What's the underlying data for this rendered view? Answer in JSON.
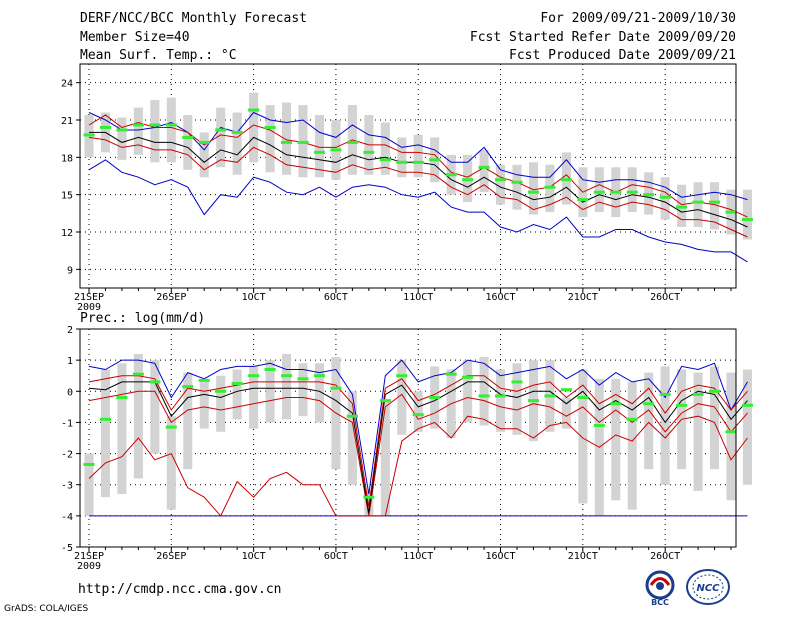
{
  "header": {
    "title": "DERF/NCC/BCC Monthly Forecast",
    "member_size": "Member Size=40",
    "variable_top": "Mean Surf. Temp.: °C",
    "period": "For 2009/09/21-2009/10/30",
    "fcst_started": "Fcst Started Refer Date 2009/09/20",
    "fcst_produced": "Fcst Produced Date 2009/09/21"
  },
  "footer": {
    "url": "http://cmdp.ncc.cma.gov.cn",
    "grads": "GrADS: COLA/IGES",
    "logo_bcc": "BCC",
    "logo_ncc": "NCC"
  },
  "colors": {
    "ensemble_mean": "#000000",
    "member_spread": "#cc0000",
    "extreme_envelope": "#0000cc",
    "box": "#d3d3d3",
    "median": "#33ee33",
    "grid": "#000000"
  },
  "chart_data": [
    {
      "type": "line",
      "title": "Mean Surf. Temp.: °C",
      "xlabel": "",
      "ylabel": "",
      "x_tick_labels": [
        "21SEP",
        "26SEP",
        "1OCT",
        "6OCT",
        "11OCT",
        "16OCT",
        "21OCT",
        "26OCT"
      ],
      "year_label": "2009",
      "x_tick_days": [
        1,
        6,
        11,
        16,
        21,
        26,
        31,
        36
      ],
      "days": 40,
      "yticks": [
        9,
        12,
        15,
        18,
        21,
        24
      ],
      "ylim": [
        7.5,
        25.5
      ],
      "grid": true,
      "series": [
        {
          "name": "ensemble mean",
          "values": [
            20.0,
            20.0,
            19.2,
            19.6,
            19.2,
            19.2,
            18.8,
            17.6,
            18.6,
            18.2,
            19.6,
            19.0,
            18.2,
            18.0,
            17.8,
            17.6,
            18.2,
            17.8,
            18.0,
            17.6,
            17.6,
            17.4,
            16.2,
            15.6,
            16.4,
            15.6,
            15.2,
            14.6,
            14.8,
            15.6,
            14.4,
            15.0,
            14.6,
            15.0,
            14.8,
            14.4,
            13.6,
            13.8,
            13.4,
            13.0,
            12.4
          ]
        },
        {
          "name": "upper member",
          "values": [
            20.6,
            21.4,
            20.4,
            20.8,
            20.4,
            20.4,
            20.0,
            19.0,
            19.8,
            19.6,
            20.6,
            20.2,
            19.4,
            19.2,
            18.8,
            18.8,
            19.4,
            19.0,
            19.0,
            18.4,
            18.4,
            18.2,
            16.8,
            16.4,
            17.2,
            16.4,
            16.0,
            15.4,
            15.6,
            16.6,
            15.2,
            15.8,
            15.2,
            15.8,
            15.6,
            15.2,
            14.2,
            14.4,
            14.2,
            13.8,
            13.2
          ]
        },
        {
          "name": "lower member",
          "values": [
            19.6,
            19.4,
            18.8,
            19.0,
            18.6,
            18.6,
            18.2,
            17.0,
            17.8,
            17.6,
            18.8,
            18.2,
            17.4,
            17.2,
            17.0,
            16.8,
            17.4,
            17.0,
            17.2,
            16.8,
            16.8,
            16.6,
            15.6,
            15.0,
            15.8,
            14.8,
            14.6,
            13.8,
            14.2,
            14.8,
            13.8,
            14.4,
            14.0,
            14.4,
            14.2,
            13.8,
            13.0,
            13.0,
            12.8,
            12.2,
            11.6
          ]
        },
        {
          "name": "maximum",
          "values": [
            21.6,
            21.0,
            20.2,
            20.2,
            20.4,
            20.8,
            20.0,
            18.6,
            20.4,
            20.0,
            21.6,
            21.0,
            20.8,
            21.0,
            20.0,
            19.6,
            20.6,
            19.8,
            19.6,
            18.8,
            19.0,
            18.6,
            17.6,
            17.6,
            18.8,
            17.0,
            16.6,
            16.4,
            16.4,
            17.8,
            16.2,
            16.0,
            16.2,
            16.2,
            16.0,
            15.6,
            14.8,
            15.0,
            15.2,
            15.0,
            14.6
          ]
        },
        {
          "name": "minimum",
          "values": [
            17.0,
            17.8,
            16.8,
            16.4,
            15.8,
            16.2,
            15.6,
            13.4,
            15.0,
            14.8,
            16.4,
            16.0,
            15.2,
            15.0,
            15.6,
            14.8,
            15.6,
            15.8,
            15.6,
            15.0,
            14.8,
            15.2,
            14.0,
            13.6,
            13.6,
            12.4,
            12.0,
            12.6,
            12.2,
            13.2,
            11.6,
            11.6,
            12.2,
            12.2,
            11.6,
            11.2,
            11.0,
            10.6,
            10.4,
            10.4,
            9.6
          ]
        }
      ],
      "box_low": [
        18.0,
        18.4,
        17.8,
        18.2,
        17.6,
        17.6,
        17.0,
        16.4,
        17.2,
        16.6,
        17.6,
        16.8,
        16.6,
        16.4,
        16.4,
        16.2,
        16.6,
        16.6,
        16.6,
        16.4,
        16.4,
        16.0,
        15.0,
        14.4,
        15.2,
        14.2,
        13.8,
        13.4,
        13.6,
        14.2,
        13.2,
        13.6,
        13.2,
        13.6,
        13.4,
        13.0,
        12.4,
        12.4,
        12.2,
        11.8,
        11.4
      ],
      "box_high": [
        21.4,
        21.6,
        21.2,
        22.0,
        22.6,
        22.8,
        21.4,
        20.0,
        22.0,
        21.6,
        23.2,
        22.2,
        22.4,
        22.2,
        21.4,
        21.0,
        22.2,
        21.4,
        20.8,
        19.6,
        19.8,
        19.6,
        18.2,
        18.2,
        18.6,
        17.4,
        17.4,
        17.6,
        17.4,
        18.4,
        17.2,
        17.2,
        17.2,
        17.2,
        16.8,
        16.4,
        15.8,
        16.0,
        16.0,
        15.4,
        15.4
      ],
      "median": [
        19.8,
        20.4,
        20.2,
        20.6,
        20.6,
        20.6,
        19.6,
        19.2,
        20.2,
        20.0,
        21.8,
        20.4,
        19.2,
        19.2,
        18.4,
        18.6,
        19.2,
        18.4,
        17.8,
        17.6,
        17.6,
        17.8,
        16.6,
        16.2,
        17.2,
        16.2,
        16.0,
        15.2,
        15.6,
        16.2,
        14.6,
        15.2,
        15.2,
        15.2,
        15.0,
        14.8,
        14.0,
        14.4,
        14.4,
        13.6,
        13.0
      ]
    },
    {
      "type": "line",
      "title": "Prec.: log(mm/d)",
      "xlabel": "",
      "ylabel": "",
      "x_tick_labels": [
        "21SEP",
        "26SEP",
        "1OCT",
        "6OCT",
        "11OCT",
        "16OCT",
        "21OCT",
        "26OCT"
      ],
      "year_label": "2009",
      "x_tick_days": [
        1,
        6,
        11,
        16,
        21,
        26,
        31,
        36
      ],
      "days": 40,
      "yticks": [
        -5,
        -4,
        -3,
        -2,
        -1,
        0,
        1,
        2
      ],
      "ylim": [
        -5,
        2
      ],
      "grid": true,
      "series": [
        {
          "name": "ensemble mean",
          "values": [
            0.1,
            0.05,
            0.3,
            0.3,
            0.3,
            -0.8,
            -0.2,
            -0.1,
            -0.2,
            0.0,
            0.1,
            0.1,
            0.1,
            0.1,
            0.0,
            -0.3,
            -0.7,
            -3.9,
            -0.1,
            0.2,
            -0.5,
            -0.3,
            0.0,
            0.3,
            0.3,
            -0.1,
            -0.2,
            0.0,
            0.0,
            -0.4,
            0.0,
            -0.6,
            -0.3,
            -0.6,
            -0.2,
            -1.0,
            -0.3,
            0.0,
            -0.1,
            -0.9,
            -0.3
          ]
        },
        {
          "name": "upper member",
          "values": [
            0.3,
            0.4,
            0.5,
            0.5,
            0.4,
            -0.6,
            0.1,
            0.0,
            0.1,
            0.2,
            0.3,
            0.3,
            0.3,
            0.3,
            0.3,
            0.2,
            -0.4,
            -3.7,
            0.1,
            0.4,
            -0.3,
            -0.1,
            0.2,
            0.5,
            0.5,
            0.1,
            0.0,
            0.2,
            0.3,
            -0.2,
            0.2,
            -0.4,
            -0.1,
            -0.4,
            0.1,
            -0.7,
            0.0,
            0.2,
            0.1,
            -0.6,
            0.0
          ]
        },
        {
          "name": "lower member",
          "values": [
            -0.3,
            -0.2,
            -0.1,
            0.0,
            0.0,
            -1.0,
            -0.6,
            -0.5,
            -0.6,
            -0.5,
            -0.4,
            -0.3,
            -0.2,
            -0.2,
            -0.3,
            -0.7,
            -1.0,
            -4.0,
            -0.5,
            -0.1,
            -0.9,
            -0.7,
            -0.4,
            -0.2,
            -0.3,
            -0.5,
            -0.6,
            -0.4,
            -0.5,
            -0.8,
            -0.5,
            -1.0,
            -0.6,
            -1.0,
            -0.6,
            -1.3,
            -0.7,
            -0.4,
            -0.5,
            -1.3,
            -0.7
          ]
        },
        {
          "name": "maximum",
          "values": [
            0.8,
            0.7,
            1.0,
            1.0,
            0.9,
            -0.2,
            0.6,
            0.4,
            0.7,
            0.8,
            0.8,
            0.9,
            0.7,
            0.7,
            0.6,
            0.7,
            -0.1,
            -3.3,
            0.5,
            1.0,
            0.3,
            0.5,
            0.6,
            1.0,
            0.9,
            0.5,
            0.6,
            0.7,
            0.8,
            0.4,
            0.7,
            0.2,
            0.6,
            0.3,
            0.4,
            -0.2,
            0.8,
            0.7,
            0.9,
            -0.6,
            0.3
          ]
        },
        {
          "name": "minimum",
          "values": [
            -2.8,
            -2.3,
            -2.1,
            -1.5,
            -2.2,
            -2.0,
            -3.1,
            -3.4,
            -4.0,
            -2.9,
            -3.4,
            -2.8,
            -2.6,
            -3.0,
            -3.0,
            -4.0,
            -4.0,
            -4.0,
            -4.0,
            -1.6,
            -1.2,
            -1.0,
            -1.5,
            -0.8,
            -0.9,
            -1.2,
            -1.2,
            -1.5,
            -1.1,
            -1.0,
            -1.5,
            -1.8,
            -1.4,
            -1.6,
            -1.0,
            -1.5,
            -0.9,
            -0.8,
            -1.0,
            -2.2,
            -1.5
          ]
        },
        {
          "name": "baseline",
          "values": [
            -4,
            -4,
            -4,
            -4,
            -4,
            -4,
            -4,
            -4,
            -4,
            -4,
            -4,
            -4,
            -4,
            -4,
            -4,
            -4,
            -4,
            -4,
            -4,
            -4,
            -4,
            -4,
            -4,
            -4,
            -4,
            -4,
            -4,
            -4,
            -4,
            -4,
            -4,
            -4,
            -4,
            -4,
            -4,
            -4,
            -4,
            -4,
            -4,
            -4,
            -4
          ]
        }
      ],
      "box_low": [
        -4.0,
        -3.4,
        -3.3,
        -2.8,
        -2.0,
        -3.8,
        -2.5,
        -1.2,
        -1.3,
        -0.9,
        -1.2,
        -1.0,
        -0.9,
        -0.8,
        -1.0,
        -2.5,
        -3.0,
        -4.0,
        -4.0,
        -1.4,
        -1.3,
        -1.2,
        -1.5,
        -1.0,
        -1.1,
        -1.3,
        -1.4,
        -1.6,
        -1.3,
        -1.2,
        -3.6,
        -4.0,
        -3.5,
        -3.8,
        -2.5,
        -3.0,
        -2.5,
        -3.2,
        -2.5,
        -3.5,
        -3.0
      ],
      "box_high": [
        -2.0,
        0.7,
        0.9,
        1.2,
        1.0,
        -0.8,
        0.6,
        0.3,
        0.5,
        0.7,
        0.8,
        1.0,
        1.2,
        0.9,
        0.9,
        1.1,
        0.0,
        -3.2,
        -0.3,
        1.0,
        0.0,
        0.8,
        0.7,
        1.0,
        1.1,
        0.7,
        0.9,
        1.0,
        1.0,
        -0.2,
        0.7,
        0.4,
        0.4,
        0.3,
        0.6,
        0.8,
        0.7,
        0.6,
        0.8,
        0.6,
        0.7
      ],
      "median": [
        -2.35,
        -0.9,
        -0.2,
        0.55,
        0.3,
        -1.15,
        0.15,
        0.35,
        0.0,
        0.25,
        0.5,
        0.7,
        0.5,
        0.4,
        0.5,
        0.1,
        -0.8,
        -3.4,
        -0.3,
        0.5,
        -0.75,
        -0.2,
        0.55,
        0.45,
        -0.15,
        -0.15,
        0.3,
        -0.3,
        -0.15,
        0.05,
        -0.2,
        -1.1,
        -0.4,
        -0.9,
        -0.4,
        -0.1,
        -0.45,
        -0.1,
        0.0,
        -1.3,
        -0.45
      ]
    }
  ]
}
